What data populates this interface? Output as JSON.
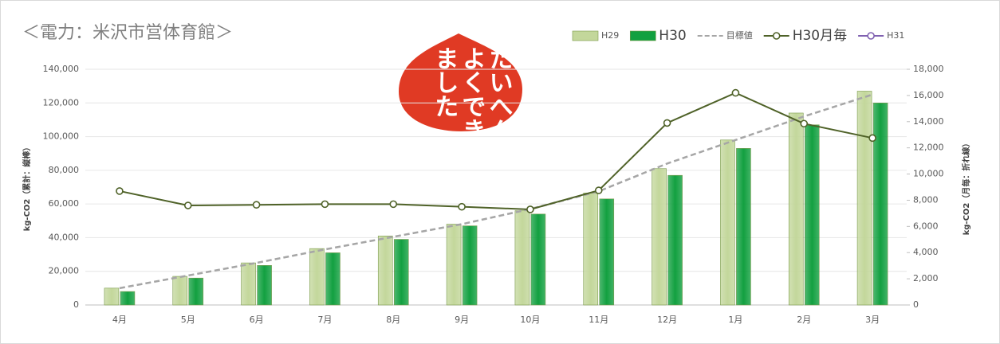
{
  "chart_data": {
    "type": "bar",
    "title": "＜電力：米沢市営体育館＞",
    "y_label": "kg-CO2（累計：縦棒）",
    "y2_label": "kg-CO2（月毎：折れ線）",
    "stamp": [
      "たいへん",
      "よくでき",
      "ました"
    ],
    "categories": [
      "4月",
      "5月",
      "6月",
      "7月",
      "8月",
      "9月",
      "10月",
      "11月",
      "12月",
      "1月",
      "2月",
      "3月"
    ],
    "series": [
      {
        "name": "H29",
        "type": "bar",
        "color": "#c3d79b",
        "values": [
          10000,
          17000,
          25000,
          33500,
          41000,
          48000,
          56000,
          66500,
          81000,
          98000,
          114000,
          127000
        ]
      },
      {
        "name": "H30",
        "type": "bar",
        "color": "#12a040",
        "values": [
          8000,
          16000,
          23500,
          31000,
          39000,
          47000,
          54000,
          63000,
          77000,
          93000,
          107000,
          120000
        ]
      },
      {
        "name": "目標値",
        "type": "line",
        "dashed": true,
        "color": "#a6a6a6",
        "values": [
          10000,
          17500,
          25000,
          33000,
          40500,
          48000,
          57000,
          67500,
          84000,
          98000,
          112000,
          125000
        ]
      },
      {
        "name": "H30月毎",
        "type": "line",
        "axis": "y2",
        "marker": true,
        "color": "#4f6228",
        "values": [
          8700,
          7600,
          7650,
          7700,
          7700,
          7500,
          7300,
          8750,
          13900,
          16200,
          13850,
          12750
        ]
      },
      {
        "name": "H31",
        "type": "line",
        "axis": "y2",
        "marker": true,
        "color": "#7f60b0",
        "values": [
          null,
          null,
          null,
          null,
          null,
          null,
          null,
          null,
          null,
          null,
          null,
          null
        ]
      }
    ],
    "ylim": [
      0,
      140000
    ],
    "yticks": [
      0,
      {
        "value": 20000,
        "label": "20,000"
      },
      {
        "value": 40000,
        "label": "40,000"
      },
      {
        "value": 60000,
        "label": "60,000"
      },
      {
        "value": 80000,
        "label": "80,000"
      },
      {
        "value": 100000,
        "label": "100,000"
      },
      {
        "value": 120000,
        "label": "120,000"
      },
      {
        "value": 140000,
        "label": "140,000"
      }
    ],
    "y2lim": [
      0,
      18000
    ],
    "y2ticks": [
      0,
      {
        "value": 2000,
        "label": "2,000"
      },
      {
        "value": 4000,
        "label": "4,000"
      },
      {
        "value": 6000,
        "label": "6,000"
      },
      {
        "value": 8000,
        "label": "8,000"
      },
      {
        "value": 10000,
        "label": "10,000"
      },
      {
        "value": 12000,
        "label": "12,000"
      },
      {
        "value": 14000,
        "label": "14,000"
      },
      {
        "value": 16000,
        "label": "16,000"
      },
      {
        "value": 18000,
        "label": "18,000"
      }
    ],
    "grid": true
  }
}
